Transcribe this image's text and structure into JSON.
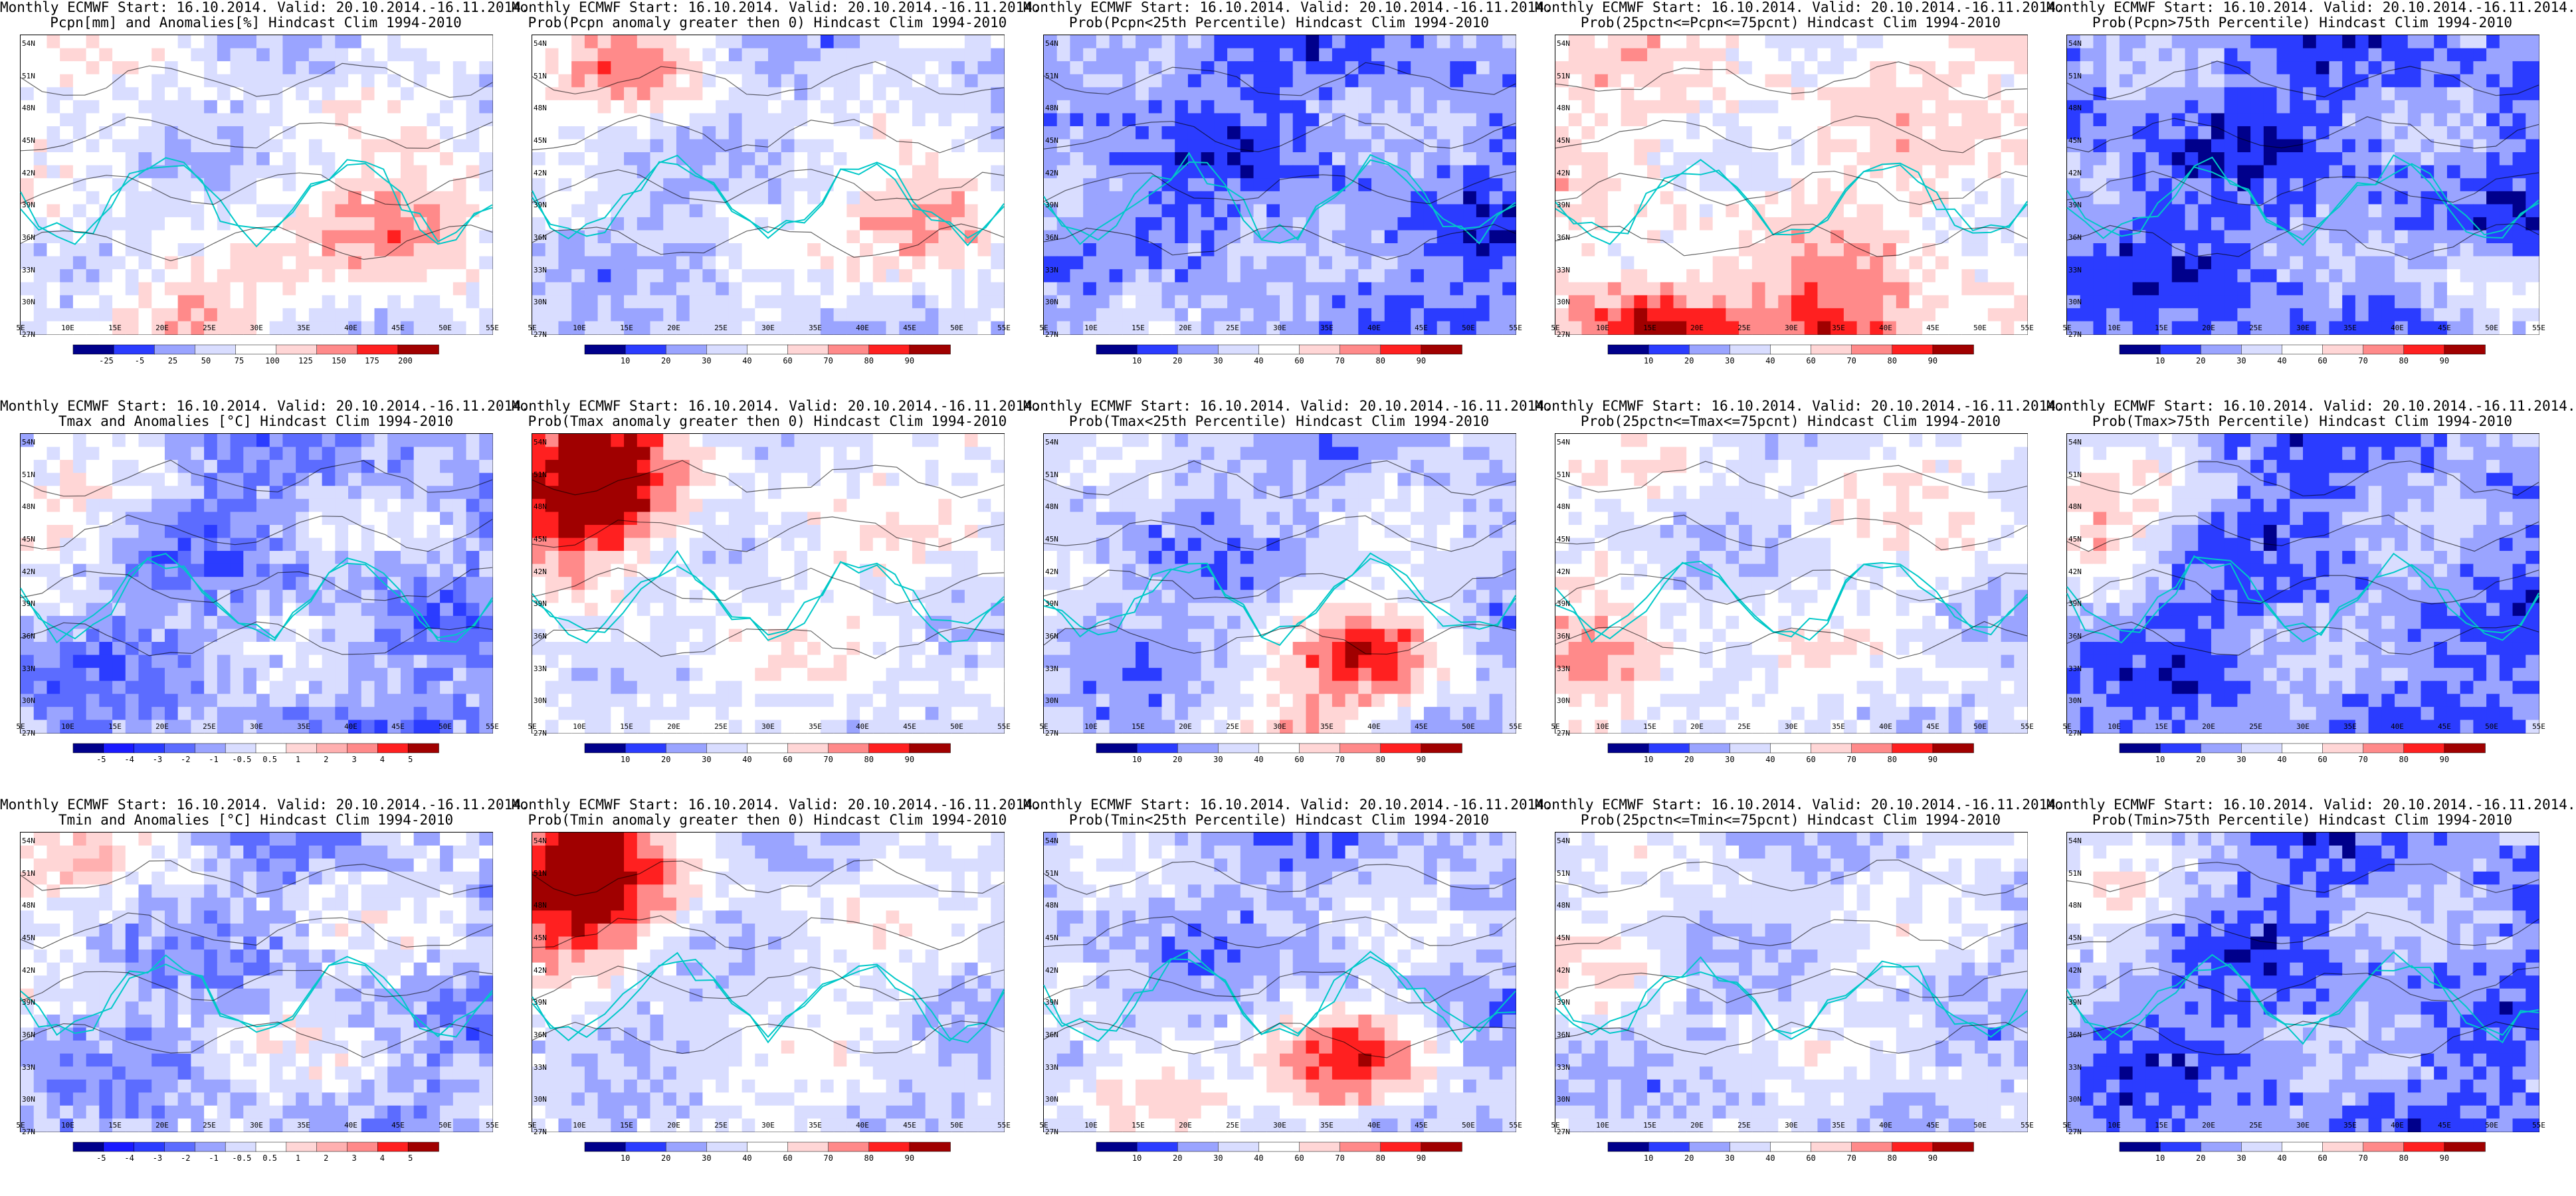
{
  "panels": [
    {
      "title1": "Monthly ECMWF Start: 16.10.2014. Valid: 20.10.2014.-16.11.2014.",
      "title2": "Pcpn[mm] and Anomalies[%] Hindcast Clim 1994-2010",
      "ticks": [
        "-25",
        "-5",
        "25",
        "50",
        "75",
        "100",
        "125",
        "150",
        "175",
        "200"
      ],
      "scheme": "precip"
    },
    {
      "title1": "Monthly ECMWF Start: 16.10.2014. Valid: 20.10.2014.-16.11.2014.",
      "title2": "Prob(Pcpn anomaly greater then 0) Hindcast Clim 1994-2010",
      "ticks": [
        "10",
        "20",
        "30",
        "40",
        "60",
        "70",
        "80",
        "90"
      ],
      "scheme": "prob"
    },
    {
      "title1": "Monthly ECMWF Start: 16.10.2014. Valid: 20.10.2014.-16.11.2014.",
      "title2": "Prob(Pcpn<25th Percentile) Hindcast Clim 1994-2010",
      "ticks": [
        "10",
        "20",
        "30",
        "40",
        "60",
        "70",
        "80",
        "90"
      ],
      "scheme": "prob"
    },
    {
      "title1": "Monthly ECMWF Start: 16.10.2014. Valid: 20.10.2014.-16.11.2014.",
      "title2": "Prob(25pctn<=Pcpn<=75pcnt) Hindcast Clim 1994-2010",
      "ticks": [
        "10",
        "20",
        "30",
        "40",
        "60",
        "70",
        "80",
        "90"
      ],
      "scheme": "prob"
    },
    {
      "title1": "Monthly ECMWF Start: 16.10.2014. Valid: 20.10.2014.-16.11.2014.",
      "title2": "Prob(Pcpn>75th Percentile) Hindcast Clim 1994-2010",
      "ticks": [
        "10",
        "20",
        "30",
        "40",
        "60",
        "70",
        "80",
        "90"
      ],
      "scheme": "prob"
    },
    {
      "title1": "Monthly ECMWF Start: 16.10.2014. Valid: 20.10.2014.-16.11.2014.",
      "title2": "Tmax and Anomalies [°C] Hindcast Clim 1994-2010",
      "ticks": [
        "-5",
        "-4",
        "-3",
        "-2",
        "-1",
        "-0.5",
        "0.5",
        "1",
        "2",
        "3",
        "4",
        "5"
      ],
      "scheme": "anom"
    },
    {
      "title1": "Monthly ECMWF Start: 16.10.2014. Valid: 20.10.2014.-16.11.2014.",
      "title2": "Prob(Tmax anomaly greater then 0) Hindcast Clim 1994-2010",
      "ticks": [
        "10",
        "20",
        "30",
        "40",
        "60",
        "70",
        "80",
        "90"
      ],
      "scheme": "prob"
    },
    {
      "title1": "Monthly ECMWF Start: 16.10.2014. Valid: 20.10.2014.-16.11.2014.",
      "title2": "Prob(Tmax<25th Percentile) Hindcast Clim 1994-2010",
      "ticks": [
        "10",
        "20",
        "30",
        "40",
        "60",
        "70",
        "80",
        "90"
      ],
      "scheme": "prob"
    },
    {
      "title1": "Monthly ECMWF Start: 16.10.2014. Valid: 20.10.2014.-16.11.2014.",
      "title2": "Prob(25pctn<=Tmax<=75pcnt) Hindcast Clim 1994-2010",
      "ticks": [
        "10",
        "20",
        "30",
        "40",
        "60",
        "70",
        "80",
        "90"
      ],
      "scheme": "prob"
    },
    {
      "title1": "Monthly ECMWF Start: 16.10.2014. Valid: 20.10.2014.-16.11.2014.",
      "title2": "Prob(Tmax>75th Percentile) Hindcast Clim 1994-2010",
      "ticks": [
        "10",
        "20",
        "30",
        "40",
        "60",
        "70",
        "80",
        "90"
      ],
      "scheme": "prob"
    },
    {
      "title1": "Monthly ECMWF Start: 16.10.2014. Valid: 20.10.2014.-16.11.2014.",
      "title2": "Tmin and Anomalies [°C] Hindcast Clim 1994-2010",
      "ticks": [
        "-5",
        "-4",
        "-3",
        "-2",
        "-1",
        "-0.5",
        "0.5",
        "1",
        "2",
        "3",
        "4",
        "5"
      ],
      "scheme": "anom"
    },
    {
      "title1": "Monthly ECMWF Start: 16.10.2014. Valid: 20.10.2014.-16.11.2014.",
      "title2": "Prob(Tmin anomaly greater then 0) Hindcast Clim 1994-2010",
      "ticks": [
        "10",
        "20",
        "30",
        "40",
        "60",
        "70",
        "80",
        "90"
      ],
      "scheme": "prob"
    },
    {
      "title1": "Monthly ECMWF Start: 16.10.2014. Valid: 20.10.2014.-16.11.2014.",
      "title2": "Prob(Tmin<25th Percentile) Hindcast Clim 1994-2010",
      "ticks": [
        "10",
        "20",
        "30",
        "40",
        "60",
        "70",
        "80",
        "90"
      ],
      "scheme": "prob"
    },
    {
      "title1": "Monthly ECMWF Start: 16.10.2014. Valid: 20.10.2014.-16.11.2014.",
      "title2": "Prob(25pctn<=Tmin<=75pcnt) Hindcast Clim 1994-2010",
      "ticks": [
        "10",
        "20",
        "30",
        "40",
        "60",
        "70",
        "80",
        "90"
      ],
      "scheme": "prob"
    },
    {
      "title1": "Monthly ECMWF Start: 16.10.2014. Valid: 20.10.2014.-16.11.2014.",
      "title2": "Prob(Tmin>75th Percentile) Hindcast Clim 1994-2010",
      "ticks": [
        "10",
        "20",
        "30",
        "40",
        "60",
        "70",
        "80",
        "90"
      ],
      "scheme": "prob"
    }
  ],
  "lat_labels": [
    "54N",
    "51N",
    "48N",
    "45N",
    "42N",
    "39N",
    "36N",
    "33N",
    "30N",
    "27N"
  ],
  "lon_labels": [
    "5E",
    "10E",
    "15E",
    "20E",
    "25E",
    "30E",
    "35E",
    "40E",
    "45E",
    "50E",
    "55E"
  ],
  "colors": {
    "dark_blue": "#00008b",
    "blue": "#2b3cff",
    "light_blue": "#9aa4ff",
    "pale_blue": "#d9ddff",
    "white": "#ffffff",
    "pale_red": "#ffd6d6",
    "light_red": "#ff8a8a",
    "red": "#ff2020",
    "dark_red": "#a00000",
    "coast": "#00c8c8",
    "contour": "#000000"
  }
}
